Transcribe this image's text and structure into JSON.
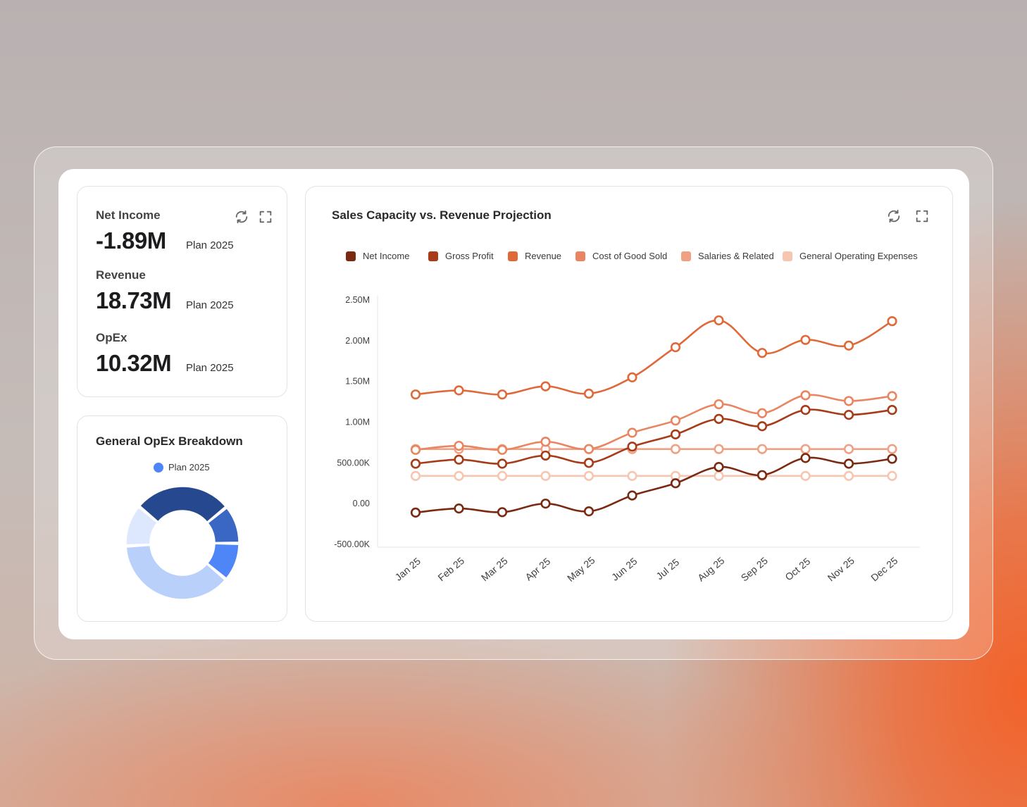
{
  "kpis": [
    {
      "label": "Net Income",
      "value": "-1.89M",
      "plan": "Plan 2025"
    },
    {
      "label": "Revenue",
      "value": "18.73M",
      "plan": "Plan 2025"
    },
    {
      "label": "OpEx",
      "value": "10.32M",
      "plan": "Plan 2025"
    }
  ],
  "icons": {
    "refresh": "refresh-icon",
    "fullscreen": "fullscreen-icon"
  },
  "donut": {
    "title": "General OpEx Breakdown",
    "legend": "Plan 2025",
    "legend_color": "#4f86f7",
    "segments": [
      {
        "value": 28,
        "color": "#26488e"
      },
      {
        "value": 11,
        "color": "#3a66c4"
      },
      {
        "value": 11,
        "color": "#4f86f7"
      },
      {
        "value": 38,
        "color": "#b9d0fb"
      },
      {
        "value": 12,
        "color": "#dde7fd"
      }
    ]
  },
  "chart": {
    "title": "Sales Capacity vs. Revenue Projection"
  },
  "chart_data": {
    "type": "line",
    "title": "Sales Capacity vs. Revenue Projection",
    "categories": [
      "Jan 25",
      "Feb 25",
      "Mar 25",
      "Apr 25",
      "May 25",
      "Jun 25",
      "Jul 25",
      "Aug 25",
      "Sep 25",
      "Oct 25",
      "Nov 25",
      "Dec 25"
    ],
    "y_ticks": [
      "2.50M",
      "2.00M",
      "1.50M",
      "1.00M",
      "500.00K",
      "0.00",
      "-500.00K"
    ],
    "ylim": [
      -500000,
      2500000
    ],
    "series": [
      {
        "name": "Net Income",
        "color": "#7a2a10",
        "values": [
          -110000,
          -60000,
          -105000,
          0,
          -95000,
          100000,
          250000,
          450000,
          350000,
          560000,
          490000,
          550000
        ]
      },
      {
        "name": "Gross Profit",
        "color": "#a63c18",
        "values": [
          490000,
          540000,
          490000,
          590000,
          500000,
          700000,
          850000,
          1040000,
          950000,
          1150000,
          1090000,
          1150000
        ]
      },
      {
        "name": "Revenue",
        "color": "#e0693a",
        "values": [
          1340000,
          1390000,
          1340000,
          1440000,
          1350000,
          1550000,
          1920000,
          2250000,
          1850000,
          2010000,
          1940000,
          2240000
        ]
      },
      {
        "name": "Cost of Good Sold",
        "color": "#e98560",
        "values": [
          660000,
          710000,
          660000,
          760000,
          670000,
          870000,
          1020000,
          1220000,
          1110000,
          1330000,
          1260000,
          1320000
        ]
      },
      {
        "name": "Salaries & Related",
        "color": "#f0a183",
        "values": [
          670000,
          670000,
          670000,
          670000,
          670000,
          670000,
          670000,
          670000,
          670000,
          670000,
          670000,
          670000
        ]
      },
      {
        "name": "General Operating Expenses",
        "color": "#f6c6b1",
        "values": [
          340000,
          340000,
          340000,
          340000,
          340000,
          340000,
          340000,
          340000,
          340000,
          340000,
          340000,
          340000
        ]
      }
    ]
  }
}
